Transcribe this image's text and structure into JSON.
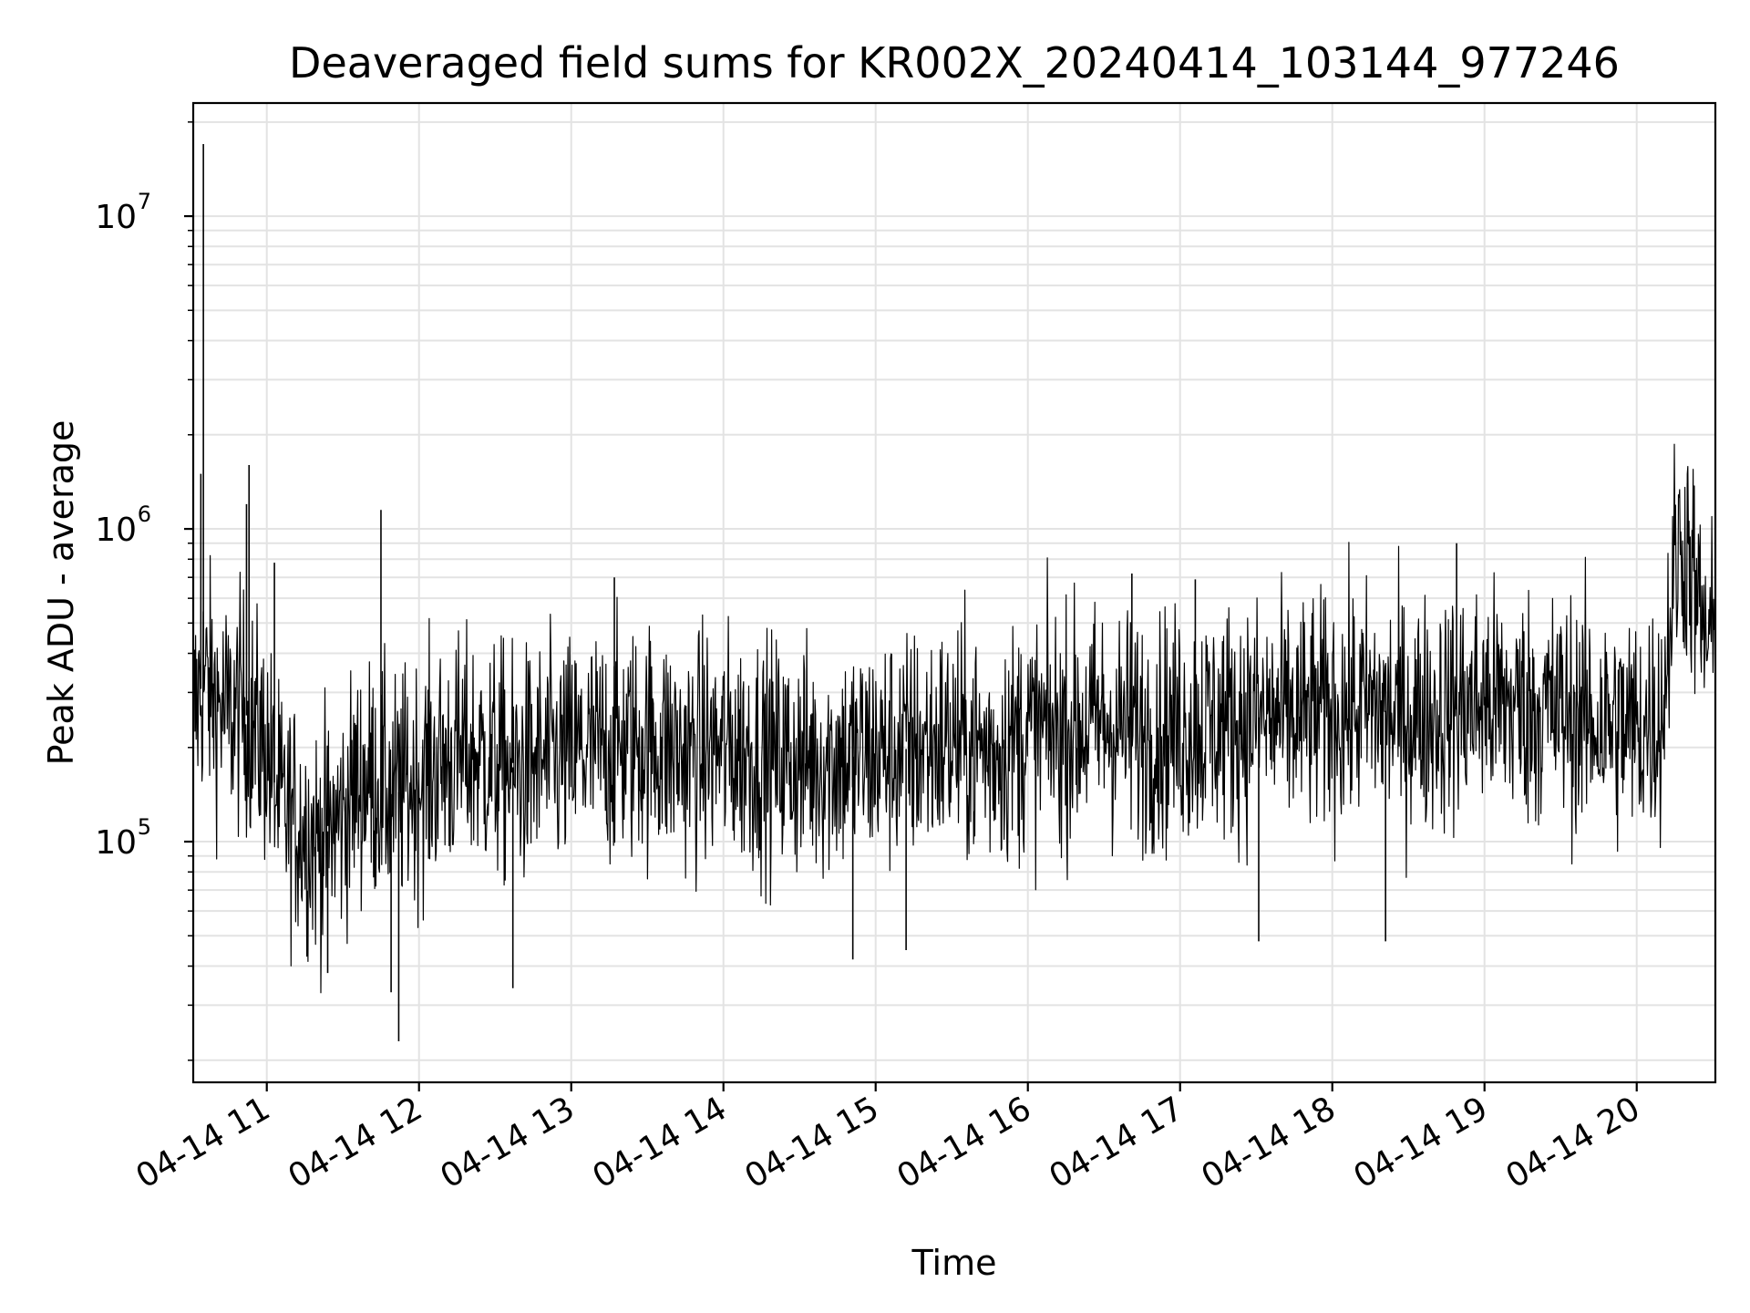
{
  "chart_data": {
    "type": "line",
    "title": "Deaveraged field sums for KR002X_20240414_103144_977246",
    "xlabel": "Time",
    "ylabel": "Peak ADU - average",
    "yscale": "log",
    "grid": true,
    "grid_minor": true,
    "color": "#000000",
    "xlim": [
      "2024-04-14 10:31",
      "2024-04-14 20:31"
    ],
    "ylim": [
      17000,
      23000000
    ],
    "x_ticks": [
      {
        "value": "2024-04-14 11:00",
        "label": "04-14 11"
      },
      {
        "value": "2024-04-14 12:00",
        "label": "04-14 12"
      },
      {
        "value": "2024-04-14 13:00",
        "label": "04-14 13"
      },
      {
        "value": "2024-04-14 14:00",
        "label": "04-14 14"
      },
      {
        "value": "2024-04-14 15:00",
        "label": "04-14 15"
      },
      {
        "value": "2024-04-14 16:00",
        "label": "04-14 16"
      },
      {
        "value": "2024-04-14 17:00",
        "label": "04-14 17"
      },
      {
        "value": "2024-04-14 18:00",
        "label": "04-14 18"
      },
      {
        "value": "2024-04-14 19:00",
        "label": "04-14 19"
      },
      {
        "value": "2024-04-14 20:00",
        "label": "04-14 20"
      }
    ],
    "y_ticks": [
      {
        "value": 100000,
        "base": "10",
        "exp": "5"
      },
      {
        "value": 1000000,
        "base": "10",
        "exp": "6"
      },
      {
        "value": 10000000,
        "base": "10",
        "exp": "7"
      }
    ],
    "series": [
      {
        "x": [
          "2024-04-14 10:31",
          "2024-04-14 10:35",
          "2024-04-14 10:40",
          "2024-04-14 10:45",
          "2024-04-14 10:50",
          "2024-04-14 10:55",
          "2024-04-14 11:00",
          "2024-04-14 11:05",
          "2024-04-14 11:10",
          "2024-04-14 11:15",
          "2024-04-14 11:20",
          "2024-04-14 11:25",
          "2024-04-14 11:30",
          "2024-04-14 11:35",
          "2024-04-14 11:40",
          "2024-04-14 11:45",
          "2024-04-14 11:50",
          "2024-04-14 11:55",
          "2024-04-14 12:00",
          "2024-04-14 12:10",
          "2024-04-14 12:20",
          "2024-04-14 12:30",
          "2024-04-14 12:40",
          "2024-04-14 12:50",
          "2024-04-14 13:00",
          "2024-04-14 13:15",
          "2024-04-14 13:30",
          "2024-04-14 13:45",
          "2024-04-14 14:00",
          "2024-04-14 14:15",
          "2024-04-14 14:30",
          "2024-04-14 14:45",
          "2024-04-14 15:00",
          "2024-04-14 15:15",
          "2024-04-14 15:30",
          "2024-04-14 15:45",
          "2024-04-14 16:00",
          "2024-04-14 16:15",
          "2024-04-14 16:30",
          "2024-04-14 16:45",
          "2024-04-14 17:00",
          "2024-04-14 17:15",
          "2024-04-14 17:30",
          "2024-04-14 17:45",
          "2024-04-14 18:00",
          "2024-04-14 18:15",
          "2024-04-14 18:30",
          "2024-04-14 18:45",
          "2024-04-14 19:00",
          "2024-04-14 19:15",
          "2024-04-14 19:30",
          "2024-04-14 19:45",
          "2024-04-14 20:00",
          "2024-04-14 20:10",
          "2024-04-14 20:15",
          "2024-04-14 20:20",
          "2024-04-14 20:25",
          "2024-04-14 20:31"
        ],
        "y": [
          250000,
          330000,
          280000,
          250000,
          270000,
          230000,
          200000,
          130000,
          120000,
          110000,
          100000,
          110000,
          120000,
          150000,
          160000,
          150000,
          140000,
          150000,
          160000,
          180000,
          190000,
          180000,
          170000,
          180000,
          190000,
          200000,
          210000,
          190000,
          200000,
          190000,
          180000,
          185000,
          190000,
          200000,
          210000,
          195000,
          220000,
          230000,
          240000,
          225000,
          230000,
          240000,
          250000,
          245000,
          260000,
          270000,
          250000,
          260000,
          280000,
          270000,
          260000,
          240000,
          230000,
          250000,
          800000,
          900000,
          500000,
          400000
        ]
      }
    ],
    "spikes": [
      {
        "x": "2024-04-14 10:35",
        "y": 17000000
      },
      {
        "x": "2024-04-14 10:34",
        "y": 1500000
      },
      {
        "x": "2024-04-14 10:53",
        "y": 1600000
      },
      {
        "x": "2024-04-14 10:52",
        "y": 1200000
      },
      {
        "x": "2024-04-14 11:03",
        "y": 780000
      },
      {
        "x": "2024-04-14 11:45",
        "y": 1150000
      },
      {
        "x": "2024-04-14 11:52",
        "y": 23000
      },
      {
        "x": "2024-04-14 11:49",
        "y": 33000
      },
      {
        "x": "2024-04-14 11:24",
        "y": 38000
      },
      {
        "x": "2024-04-14 12:37",
        "y": 34000
      },
      {
        "x": "2024-04-14 13:17",
        "y": 700000
      },
      {
        "x": "2024-04-14 14:51",
        "y": 42000
      },
      {
        "x": "2024-04-14 15:12",
        "y": 45000
      },
      {
        "x": "2024-04-14 16:41",
        "y": 720000
      },
      {
        "x": "2024-04-14 17:06",
        "y": 690000
      },
      {
        "x": "2024-04-14 17:31",
        "y": 48000
      },
      {
        "x": "2024-04-14 18:21",
        "y": 48000
      },
      {
        "x": "2024-04-14 18:49",
        "y": 900000
      },
      {
        "x": "2024-04-14 20:20",
        "y": 1400000
      }
    ]
  }
}
